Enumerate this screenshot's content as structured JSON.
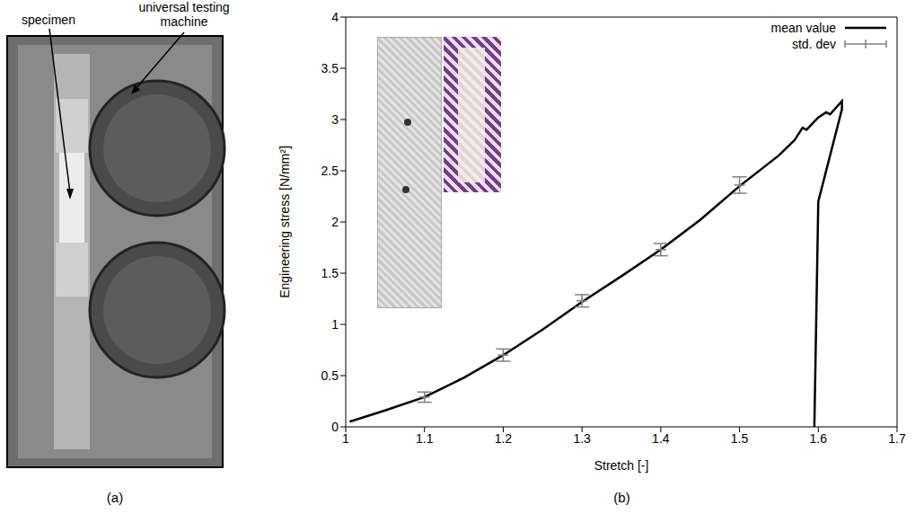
{
  "photo_panel": {
    "caption": "(a)",
    "labels": [
      "specimen",
      "universal testing machine"
    ]
  },
  "chart_data": {
    "type": "line",
    "caption": "(b)",
    "x_label": "Stretch [-]",
    "y_label": "Engineering stress [N/mm²]",
    "xlim": [
      1,
      1.7
    ],
    "xticks": [
      1,
      1.1,
      1.2,
      1.3,
      1.4,
      1.5,
      1.6,
      1.7
    ],
    "ylim": [
      0,
      4
    ],
    "yticks": [
      0,
      0.5,
      1,
      1.5,
      2,
      2.5,
      3,
      3.5,
      4
    ],
    "legend": "top-right",
    "series": [
      {
        "name": "mean value",
        "type": "line",
        "color": "#000000",
        "x": [
          1.005,
          1.05,
          1.1,
          1.15,
          1.2,
          1.25,
          1.3,
          1.35,
          1.4,
          1.45,
          1.5,
          1.55,
          1.57,
          1.58,
          1.585,
          1.6,
          1.61,
          1.615,
          1.63,
          1.63,
          1.6,
          1.595
        ],
        "values": [
          0.05,
          0.16,
          0.29,
          0.48,
          0.7,
          0.95,
          1.22,
          1.47,
          1.73,
          2.02,
          2.35,
          2.65,
          2.8,
          2.92,
          2.9,
          3.02,
          3.07,
          3.05,
          3.18,
          3.1,
          2.2,
          0
        ]
      },
      {
        "name": "std. dev",
        "type": "scatter",
        "marker": "cross",
        "color": "#808080",
        "x": [
          1.1,
          1.2,
          1.3,
          1.4,
          1.5
        ],
        "values": [
          0.29,
          0.7,
          1.23,
          1.73,
          2.36
        ],
        "error": [
          0.05,
          0.06,
          0.06,
          0.06,
          0.08
        ]
      }
    ]
  }
}
